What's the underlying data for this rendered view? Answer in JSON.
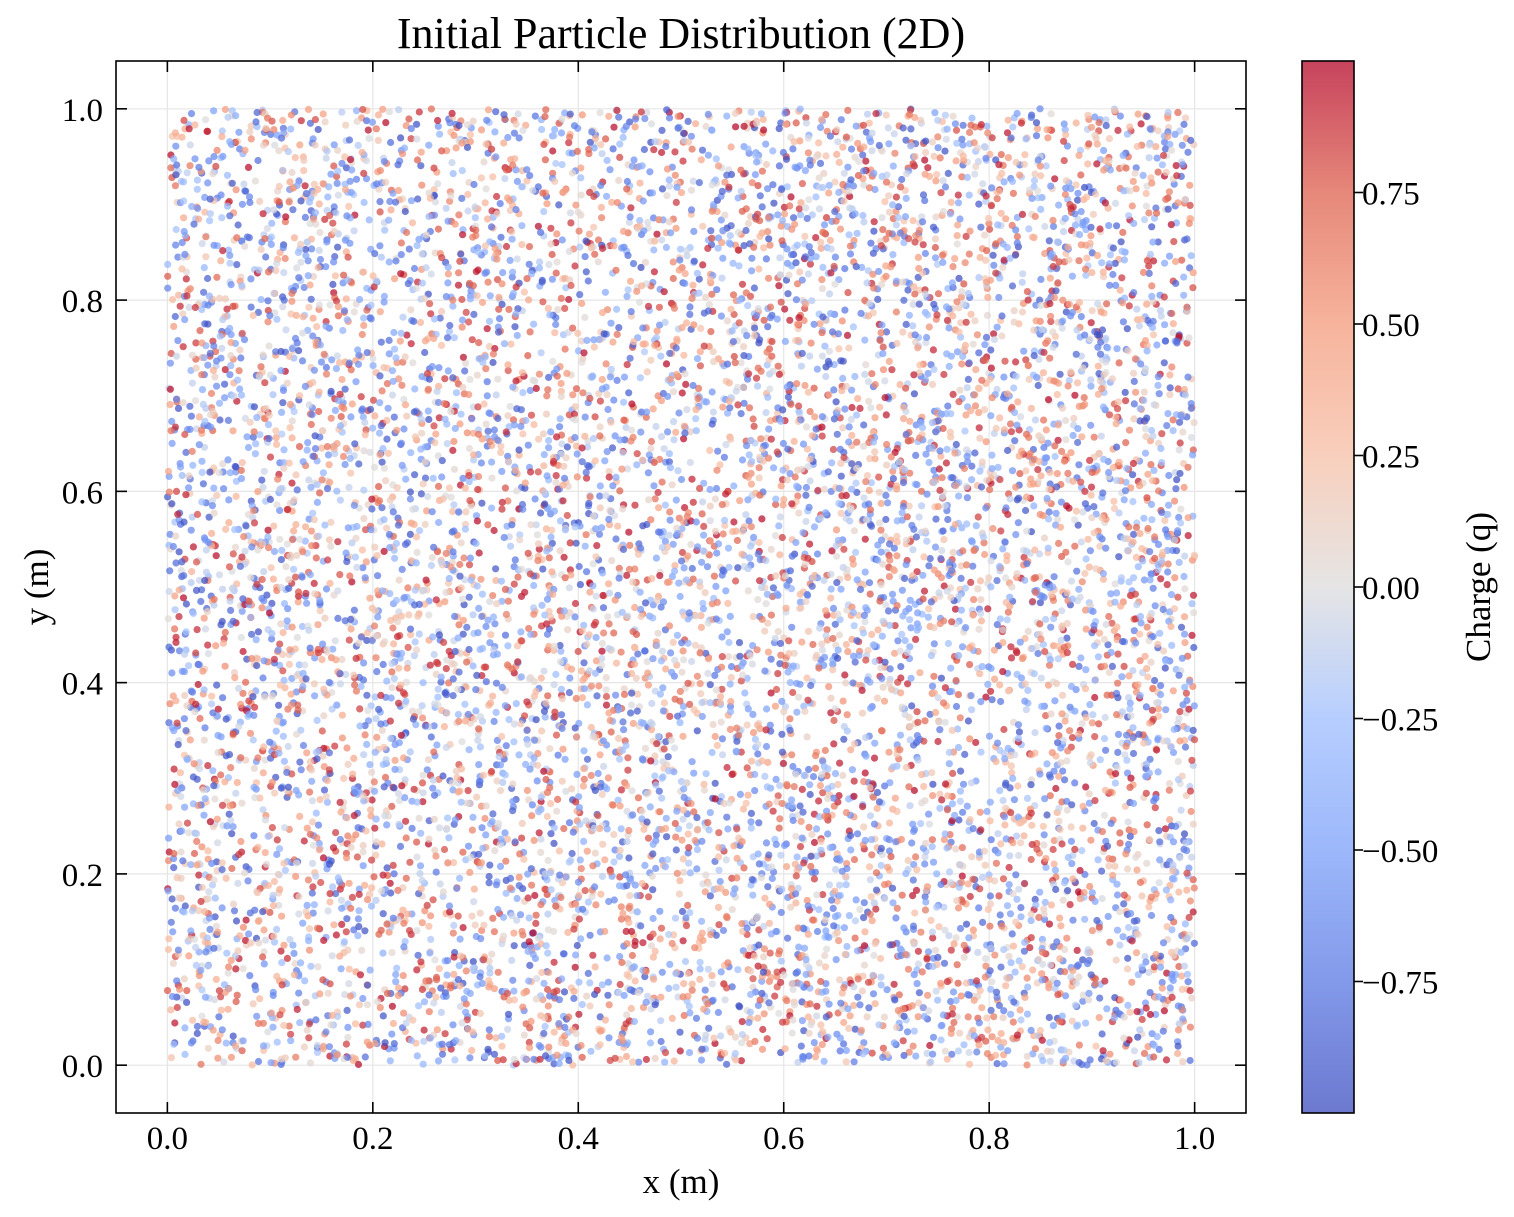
{
  "chart_data": {
    "type": "scatter",
    "title": "Initial Particle Distribution (2D)",
    "xlabel": "x (m)",
    "ylabel": "y (m)",
    "xlim": [
      -0.05,
      1.05
    ],
    "ylim": [
      -0.05,
      1.05
    ],
    "xticks": [
      "0.0",
      "0.2",
      "0.4",
      "0.6",
      "0.8",
      "1.0"
    ],
    "yticks": [
      "0.0",
      "0.2",
      "0.4",
      "0.6",
      "0.8",
      "1.0"
    ],
    "xtick_values": [
      0.0,
      0.2,
      0.4,
      0.6,
      0.8,
      1.0
    ],
    "ytick_values": [
      0.0,
      0.2,
      0.4,
      0.6,
      0.8,
      1.0
    ],
    "grid": true,
    "colormap": "coolwarm",
    "colorbar": {
      "label": "Charge (q)",
      "range": [
        -1.0,
        1.0
      ],
      "ticks": [
        "0.75",
        "0.50",
        "0.25",
        "0.00",
        "−0.25",
        "−0.50",
        "−0.75"
      ],
      "tick_values": [
        0.75,
        0.5,
        0.25,
        0.0,
        -0.25,
        -0.5,
        -0.75
      ]
    },
    "series": [
      {
        "distribution": "uniform",
        "x_range": [
          0.0,
          1.0
        ],
        "y_range": [
          0.0,
          1.0
        ],
        "charge_range": [
          -1.0,
          1.0
        ],
        "approx_count": 10000
      }
    ]
  }
}
